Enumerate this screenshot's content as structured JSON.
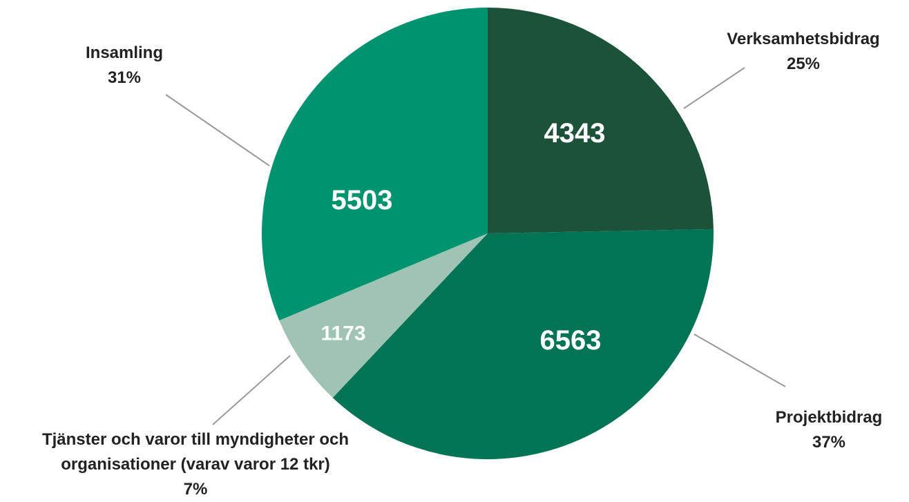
{
  "chart_data": {
    "type": "pie",
    "categories": [
      "Verksamhetsbidrag",
      "Projektbidrag",
      "Tjänster och varor till myndigheter och organisationer (varav varor 12 tkr)",
      "Insamling"
    ],
    "values": [
      4343,
      6563,
      1173,
      5503
    ],
    "percent_labels": [
      "25%",
      "37%",
      "7%",
      "31%"
    ],
    "colors": [
      "#1c5239",
      "#007455",
      "#9fc4b3",
      "#00936f"
    ]
  }
}
